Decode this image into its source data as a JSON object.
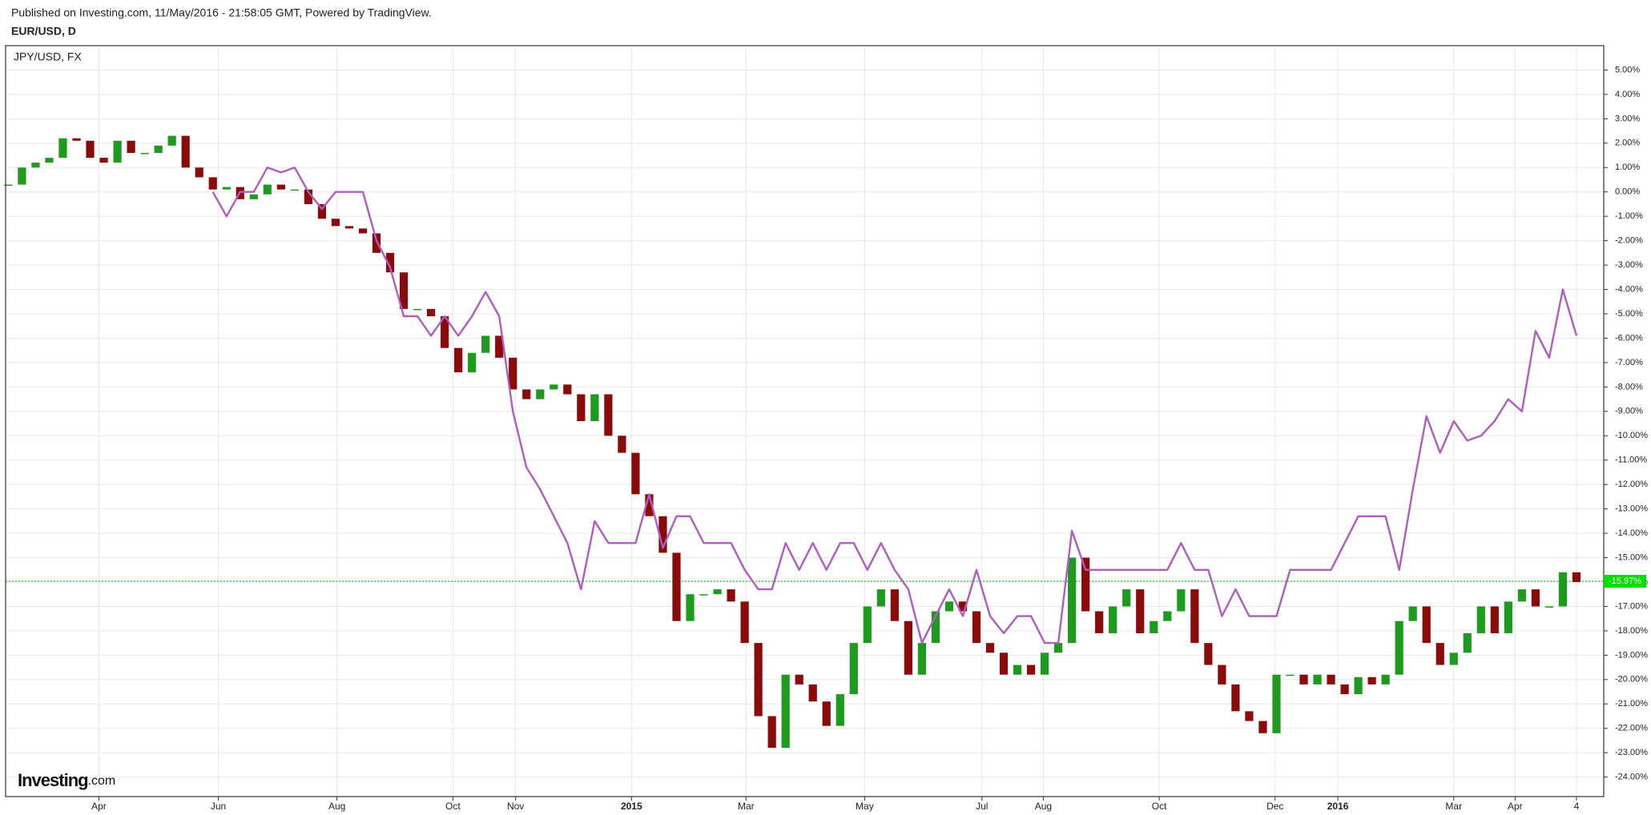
{
  "chart_data": {
    "type": "candlestick",
    "title": "Published on Investing.com, 11/May/2016 - 21:58:05 GMT, Powered by TradingView.",
    "watermark": "Investing",
    "watermark_suffix": ".com",
    "x": [
      0,
      1,
      2,
      3,
      4,
      5,
      6,
      7,
      8,
      9,
      10,
      11,
      12,
      13,
      14,
      15,
      16,
      17,
      18,
      19,
      20,
      21,
      22,
      23,
      24,
      25,
      26,
      27,
      28,
      29,
      30,
      31,
      32,
      33,
      34,
      35,
      36,
      37,
      38,
      39,
      40,
      41,
      42,
      43,
      44,
      45,
      46,
      47,
      48,
      49,
      50,
      51,
      52,
      53,
      54,
      55,
      56,
      57,
      58,
      59,
      60,
      61,
      62,
      63,
      64,
      65,
      66,
      67,
      68,
      69,
      70,
      71,
      72,
      73,
      74,
      75,
      76,
      77,
      78,
      79,
      80,
      81,
      82,
      83,
      84,
      85,
      86,
      87,
      88,
      89,
      90,
      91,
      92,
      93,
      94,
      95,
      96,
      97,
      98,
      99,
      100,
      101,
      102,
      103,
      104,
      105,
      106,
      107,
      108,
      109,
      110,
      111,
      112,
      113,
      114,
      115
    ],
    "series": [
      {
        "name": "EUR/USD, D",
        "type": "candlestick",
        "up_color": "#1e9b1e",
        "down_color": "#8b0a0a",
        "values": [
          0.3,
          1.0,
          1.2,
          1.4,
          2.2,
          2.1,
          1.4,
          1.2,
          2.1,
          1.6,
          1.6,
          1.9,
          2.3,
          1.0,
          0.6,
          0.1,
          0.2,
          -0.3,
          -0.1,
          0.3,
          0.1,
          0.1,
          -0.5,
          -1.1,
          -1.4,
          -1.5,
          -1.7,
          -2.5,
          -3.3,
          -4.8,
          -4.8,
          -5.1,
          -6.4,
          -7.4,
          -6.6,
          -5.9,
          -6.8,
          -8.1,
          -8.5,
          -8.1,
          -7.9,
          -8.3,
          -9.4,
          -8.3,
          -10.0,
          -10.7,
          -12.4,
          -13.3,
          -14.8,
          -17.6,
          -16.5,
          -16.5,
          -16.3,
          -16.8,
          -18.5,
          -21.5,
          -22.8,
          -19.8,
          -20.2,
          -20.9,
          -21.9,
          -20.6,
          -18.5,
          -17.0,
          -16.3,
          -17.6,
          -19.8,
          -18.5,
          -17.2,
          -16.8,
          -17.2,
          -18.5,
          -18.9,
          -19.8,
          -19.4,
          -19.8,
          -18.9,
          -18.5,
          -15.0,
          -17.2,
          -18.1,
          -17.0,
          -16.3,
          -18.1,
          -17.6,
          -17.2,
          -16.3,
          -18.5,
          -19.4,
          -20.2,
          -21.3,
          -21.7,
          -22.2,
          -19.8,
          -19.8,
          -20.2,
          -19.8,
          -20.2,
          -20.6,
          -19.9,
          -20.2,
          -19.8,
          -17.6,
          -17.0,
          -18.5,
          -19.4,
          -18.9,
          -18.1,
          -17.0,
          -18.1,
          -16.8,
          -16.3,
          -17.0,
          -17.0,
          -15.6,
          -16.0
        ]
      },
      {
        "name": "JPY/USD, FX",
        "type": "line",
        "color": "#b05cc0",
        "values": [
          null,
          null,
          null,
          null,
          null,
          null,
          null,
          null,
          null,
          null,
          null,
          null,
          null,
          null,
          null,
          0.0,
          -1.0,
          0.0,
          0.0,
          1.0,
          0.8,
          1.0,
          0.0,
          -0.7,
          0.0,
          0.0,
          0.0,
          -2.0,
          -3.1,
          -5.1,
          -5.1,
          -5.9,
          -5.1,
          -5.9,
          -5.1,
          -4.1,
          -5.1,
          -9.0,
          -11.3,
          -12.2,
          -13.3,
          -14.4,
          -16.3,
          -13.5,
          -14.4,
          -14.4,
          -14.4,
          -12.4,
          -14.6,
          -13.3,
          -13.3,
          -14.4,
          -14.4,
          -14.4,
          -15.5,
          -16.3,
          -16.3,
          -14.4,
          -15.5,
          -14.4,
          -15.5,
          -14.4,
          -14.4,
          -15.5,
          -14.4,
          -15.5,
          -16.3,
          -18.5,
          -17.4,
          -16.3,
          -17.4,
          -15.5,
          -17.4,
          -18.1,
          -17.4,
          -17.4,
          -18.5,
          -18.5,
          -13.9,
          -15.5,
          -15.5,
          -15.5,
          -15.5,
          -15.5,
          -15.5,
          -15.5,
          -14.4,
          -15.5,
          -15.5,
          -17.4,
          -16.3,
          -17.4,
          -17.4,
          -17.4,
          -15.5,
          -15.5,
          -15.5,
          -15.5,
          -14.4,
          -13.3,
          -13.3,
          -13.3,
          -15.5,
          -12.2,
          -9.2,
          -10.7,
          -9.4,
          -10.2,
          -10.0,
          -9.4,
          -8.5,
          -9.0,
          -5.7,
          -6.8,
          -4.0,
          -5.9
        ]
      }
    ],
    "last_price": {
      "value": -15.97,
      "label": "-15.97%",
      "color": "#00dd00"
    },
    "xlim": [
      -0.2,
      117
    ],
    "xticks": [
      {
        "value": 6.64,
        "label": "Apr"
      },
      {
        "value": 15.4,
        "label": "Jun"
      },
      {
        "value": 24.1,
        "label": "Aug"
      },
      {
        "value": 32.6,
        "label": "Oct"
      },
      {
        "value": 37.2,
        "label": "Nov"
      },
      {
        "value": 45.7,
        "label": "2015"
      },
      {
        "value": 54.1,
        "label": "Mar"
      },
      {
        "value": 62.8,
        "label": "May"
      },
      {
        "value": 71.4,
        "label": "Jul"
      },
      {
        "value": 75.9,
        "label": "Aug"
      },
      {
        "value": 84.4,
        "label": "Oct"
      },
      {
        "value": 92.9,
        "label": "Dec"
      },
      {
        "value": 97.5,
        "label": "2016"
      },
      {
        "value": 106.0,
        "label": "Mar"
      },
      {
        "value": 110.5,
        "label": "Apr"
      },
      {
        "value": 115.0,
        "label": "4"
      }
    ],
    "ylim": [
      -24.8,
      6.0
    ],
    "yticks": [
      {
        "value": 5,
        "label": "5.00%"
      },
      {
        "value": 4,
        "label": "4.00%"
      },
      {
        "value": 3,
        "label": "3.00%"
      },
      {
        "value": 2,
        "label": "2.00%"
      },
      {
        "value": 1,
        "label": "1.00%"
      },
      {
        "value": 0,
        "label": "0.00%"
      },
      {
        "value": -1,
        "label": "-1.00%"
      },
      {
        "value": -2,
        "label": "-2.00%"
      },
      {
        "value": -3,
        "label": "-3.00%"
      },
      {
        "value": -4,
        "label": "-4.00%"
      },
      {
        "value": -5,
        "label": "-5.00%"
      },
      {
        "value": -6,
        "label": "-6.00%"
      },
      {
        "value": -7,
        "label": "-7.00%"
      },
      {
        "value": -8,
        "label": "-8.00%"
      },
      {
        "value": -9,
        "label": "-9.00%"
      },
      {
        "value": -10,
        "label": "-10.00%"
      },
      {
        "value": -11,
        "label": "-11.00%"
      },
      {
        "value": -12,
        "label": "-12.00%"
      },
      {
        "value": -13,
        "label": "-13.00%"
      },
      {
        "value": -14,
        "label": "-14.00%"
      },
      {
        "value": -15,
        "label": "-15.00%"
      },
      {
        "value": -16,
        "label": "-16.00%"
      },
      {
        "value": -17,
        "label": "-17.00%"
      },
      {
        "value": -18,
        "label": "-18.00%"
      },
      {
        "value": -19,
        "label": "-19.00%"
      },
      {
        "value": -20,
        "label": "-20.00%"
      },
      {
        "value": -21,
        "label": "-21.00%"
      },
      {
        "value": -22,
        "label": "-22.00%"
      },
      {
        "value": -23,
        "label": "-23.00%"
      },
      {
        "value": -24,
        "label": "-24.00%"
      }
    ],
    "grid": true
  }
}
